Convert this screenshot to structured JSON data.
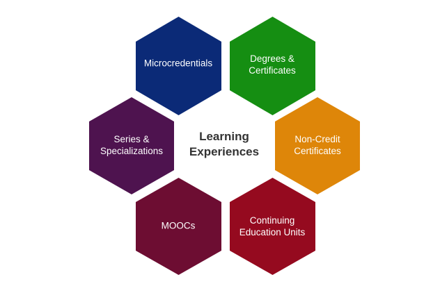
{
  "center": {
    "title": "Learning\nExperiences"
  },
  "hexagons": [
    {
      "label": "Microcredentials",
      "color": "#0b2a77"
    },
    {
      "label": "Degrees &\nCertificates",
      "color": "#158e12"
    },
    {
      "label": "Series &\nSpecializations",
      "color": "#4e134f"
    },
    {
      "label": "Non-Credit\nCertificates",
      "color": "#de8609"
    },
    {
      "label": "MOOCs",
      "color": "#6d0d32"
    },
    {
      "label": "Continuing\nEducation Units",
      "color": "#950a1f"
    }
  ]
}
